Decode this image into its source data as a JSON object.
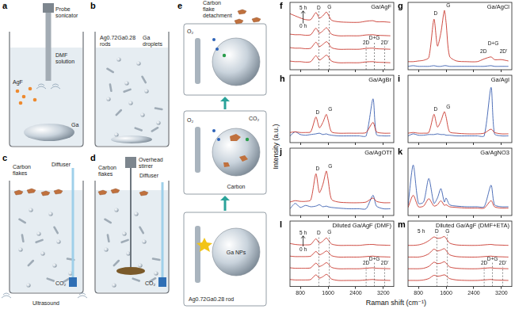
{
  "diagram": {
    "panels": [
      {
        "letter": "a",
        "labels": [
          "Probe sonicator",
          "DMF solution",
          "AgF",
          "Ga"
        ]
      },
      {
        "letter": "b",
        "labels": [
          "Ag0.72Ga0.28 rods",
          "Ga droplets"
        ]
      },
      {
        "letter": "c",
        "labels": [
          "Carbon flakes",
          "Diffuser",
          "CO₂",
          "Ultrasound"
        ]
      },
      {
        "letter": "d",
        "labels": [
          "Overhead stirrer",
          "Carbon flakes",
          "Diffuser",
          "CO₂"
        ]
      },
      {
        "letter": "e",
        "labels": [
          "Carbon flake detachment",
          "O₂",
          "O₂",
          "CO₂",
          "Carbon",
          "Ga NPs",
          "Ag0.72Ga0.28 rod"
        ]
      }
    ]
  },
  "spectra": {
    "x_label": "Raman shift (cm⁻¹)",
    "y_label": "Intensity (a.u.)"
  },
  "chart_data": [
    {
      "panel": "f",
      "type": "line",
      "title": "Ga/AgF",
      "x": [
        500,
        650,
        800,
        950,
        1100,
        1250,
        1350,
        1450,
        1550,
        1600,
        1700,
        1900,
        2200,
        2500,
        2700,
        2900,
        3000,
        3200,
        3400
      ],
      "series": [
        {
          "color": "#c8372d",
          "values": [
            1.6,
            1.5,
            1.5,
            1.4,
            1.5,
            2.6,
            1.8,
            2.2,
            2.7,
            2.5,
            1.6,
            1.3,
            1.3,
            1.3,
            1.45,
            1.5,
            1.4,
            1.35,
            1.3
          ]
        },
        {
          "color": "#c8372d",
          "values": [
            4.1,
            4.0,
            4.0,
            3.9,
            4.0,
            5.1,
            4.3,
            4.7,
            5.2,
            5.0,
            4.1,
            3.8,
            3.8,
            3.8,
            3.95,
            4.0,
            3.9,
            3.85,
            3.8
          ]
        },
        {
          "color": "#c8372d",
          "values": [
            6.6,
            6.5,
            6.5,
            6.4,
            6.5,
            7.7,
            6.8,
            7.2,
            7.8,
            7.5,
            6.6,
            6.3,
            6.3,
            6.3,
            6.45,
            6.5,
            6.4,
            6.35,
            6.3
          ]
        },
        {
          "color": "#c8372d",
          "values": [
            10.4,
            10.0,
            9.6,
            9.3,
            9.3,
            10.6,
            9.6,
            10.0,
            10.7,
            10.3,
            9.2,
            8.9,
            8.8,
            8.8,
            9.0,
            9.1,
            8.9,
            8.9,
            8.8
          ]
        }
      ],
      "xlim": [
        500,
        3500
      ],
      "xticks": [
        800,
        1600,
        2400,
        3200
      ],
      "ylim": [
        0,
        12.5
      ],
      "tick_labels": false,
      "annotations": [
        {
          "text": "D",
          "x": 1330,
          "y": 11.5,
          "line_style": "dashed"
        },
        {
          "text": "G",
          "x": 1640,
          "y": 11.6,
          "line_style": "dashed"
        },
        {
          "text": "0 h",
          "x": 880,
          "y": 8.0,
          "marker": "arrow"
        },
        {
          "text": "5 h",
          "x": 880,
          "y": 11.5
        },
        {
          "text": "2D",
          "x": 2700,
          "y": 4.9,
          "line_style": "dashed"
        },
        {
          "text": "D+G",
          "x": 2940,
          "y": 5.9,
          "line_style": "dashed"
        },
        {
          "text": "2D'",
          "x": 3240,
          "y": 4.9,
          "line_style": "dashed"
        }
      ]
    },
    {
      "panel": "g",
      "type": "line",
      "title": "Ga/AgCl",
      "x": [
        500,
        650,
        800,
        950,
        1100,
        1250,
        1350,
        1450,
        1550,
        1600,
        1700,
        1900,
        2200,
        2500,
        2700,
        2900,
        3000,
        3200,
        3400
      ],
      "series": [
        {
          "color": "#c8372d",
          "values": [
            1.2,
            1.2,
            1.3,
            1.4,
            1.8,
            7.5,
            3.5,
            5.5,
            8.8,
            7.0,
            2.0,
            1.3,
            1.2,
            1.2,
            1.6,
            1.9,
            1.5,
            1.5,
            1.3
          ]
        },
        {
          "color": "#3a5fb0",
          "values": [
            0.5,
            0.6,
            0.5,
            0.5,
            0.5,
            0.6,
            0.5,
            0.5,
            0.6,
            0.6,
            0.5,
            0.5,
            0.5,
            0.5,
            0.5,
            0.6,
            0.5,
            0.5,
            0.5
          ]
        }
      ],
      "xlim": [
        500,
        3500
      ],
      "xticks": [
        800,
        1600,
        2400,
        3200
      ],
      "ylim": [
        0,
        10
      ],
      "tick_labels": false,
      "annotations": [
        {
          "text": "D",
          "x": 1300,
          "y": 8.3
        },
        {
          "text": "G",
          "x": 1660,
          "y": 9.5
        },
        {
          "text": "2D",
          "x": 2680,
          "y": 2.7
        },
        {
          "text": "D+G",
          "x": 2960,
          "y": 3.8
        },
        {
          "text": "2D'",
          "x": 3260,
          "y": 2.7
        }
      ]
    },
    {
      "panel": "h",
      "type": "line",
      "title": "Ga/AgBr",
      "x": [
        500,
        650,
        800,
        950,
        1100,
        1250,
        1350,
        1450,
        1550,
        1600,
        1700,
        1900,
        2200,
        2500,
        2700,
        2900,
        3000,
        3200,
        3400
      ],
      "series": [
        {
          "color": "#c8372d",
          "values": [
            1.5,
            1.6,
            1.5,
            1.5,
            1.6,
            3.8,
            2.2,
            3.0,
            4.2,
            3.4,
            1.6,
            1.4,
            1.4,
            1.4,
            1.5,
            3.0,
            1.6,
            1.4,
            1.4
          ]
        },
        {
          "color": "#3a5fb0",
          "values": [
            1.0,
            1.6,
            1.2,
            1.1,
            1.2,
            1.3,
            1.4,
            1.2,
            1.3,
            1.2,
            1.1,
            1.0,
            1.0,
            1.0,
            1.0,
            6.5,
            1.2,
            1.0,
            1.0
          ]
        }
      ],
      "xlim": [
        500,
        3500
      ],
      "xticks": [
        800,
        1600,
        2400,
        3200
      ],
      "ylim": [
        0,
        10
      ],
      "tick_labels": false,
      "annotations": [
        {
          "text": "D",
          "x": 1300,
          "y": 4.5
        },
        {
          "text": "G",
          "x": 1660,
          "y": 4.9
        }
      ]
    },
    {
      "panel": "i",
      "type": "line",
      "title": "Ga/AgI",
      "x": [
        500,
        650,
        800,
        950,
        1100,
        1250,
        1350,
        1450,
        1550,
        1600,
        1700,
        1900,
        2200,
        2500,
        2700,
        2900,
        3000,
        3200,
        3400
      ],
      "series": [
        {
          "color": "#c8372d",
          "values": [
            1.4,
            1.5,
            1.4,
            1.4,
            1.5,
            4.2,
            2.3,
            3.2,
            4.6,
            3.8,
            1.6,
            1.4,
            1.3,
            1.3,
            1.4,
            2.0,
            1.5,
            1.3,
            1.3
          ]
        },
        {
          "color": "#3a5fb0",
          "values": [
            1.0,
            1.3,
            1.1,
            1.1,
            1.2,
            1.2,
            1.3,
            1.2,
            1.2,
            1.1,
            1.1,
            1.0,
            1.0,
            1.0,
            1.0,
            8.2,
            1.3,
            1.0,
            1.0
          ]
        }
      ],
      "xlim": [
        500,
        3500
      ],
      "xticks": [
        800,
        1600,
        2400,
        3200
      ],
      "ylim": [
        0,
        10
      ],
      "tick_labels": false,
      "annotations": [
        {
          "text": "D",
          "x": 1300,
          "y": 4.9
        },
        {
          "text": "G",
          "x": 1660,
          "y": 5.3
        }
      ]
    },
    {
      "panel": "j",
      "type": "line",
      "title": "Ga/AgOTf",
      "x": [
        500,
        650,
        800,
        950,
        1100,
        1250,
        1350,
        1450,
        1550,
        1600,
        1700,
        1900,
        2200,
        2500,
        2700,
        2900,
        3000,
        3200,
        3400
      ],
      "series": [
        {
          "color": "#c8372d",
          "values": [
            2.0,
            2.2,
            2.1,
            2.1,
            2.3,
            6.2,
            3.4,
            4.6,
            6.6,
            5.4,
            2.4,
            2.0,
            1.9,
            1.9,
            2.0,
            2.6,
            2.1,
            1.9,
            1.9
          ]
        },
        {
          "color": "#3a5fb0",
          "values": [
            1.0,
            1.8,
            1.2,
            1.5,
            1.3,
            1.4,
            1.6,
            1.3,
            1.4,
            1.3,
            1.2,
            1.1,
            1.0,
            1.0,
            1.0,
            3.0,
            1.4,
            1.0,
            1.0
          ]
        }
      ],
      "xlim": [
        500,
        3500
      ],
      "xticks": [
        800,
        1600,
        2400,
        3200
      ],
      "ylim": [
        0,
        10
      ],
      "tick_labels": false,
      "annotations": [
        {
          "text": "D",
          "x": 1300,
          "y": 6.9
        },
        {
          "text": "G",
          "x": 1660,
          "y": 7.3
        }
      ]
    },
    {
      "panel": "k",
      "type": "line",
      "title": "Ga/AgNO3",
      "x": [
        500,
        650,
        800,
        950,
        1100,
        1250,
        1350,
        1450,
        1550,
        1600,
        1700,
        1900,
        2200,
        2500,
        2700,
        2900,
        3000,
        3200,
        3400
      ],
      "series": [
        {
          "color": "#c8372d",
          "values": [
            1.2,
            3.0,
            1.3,
            1.4,
            2.5,
            1.4,
            1.6,
            2.2,
            1.5,
            1.6,
            1.3,
            1.2,
            1.1,
            1.1,
            1.1,
            2.2,
            1.3,
            1.1,
            1.1
          ]
        },
        {
          "color": "#3a5fb0",
          "values": [
            1.5,
            7.5,
            1.8,
            2.0,
            5.5,
            1.8,
            2.6,
            4.0,
            2.0,
            2.6,
            1.6,
            1.4,
            1.3,
            1.3,
            1.3,
            4.5,
            1.6,
            1.3,
            1.3
          ]
        }
      ],
      "xlim": [
        500,
        3500
      ],
      "xticks": [
        800,
        1600,
        2400,
        3200
      ],
      "ylim": [
        0,
        10
      ],
      "tick_labels": false,
      "annotations": []
    },
    {
      "panel": "l",
      "type": "line",
      "title": "Diluted Ga/AgF (DMF)",
      "x": [
        500,
        650,
        800,
        950,
        1100,
        1250,
        1350,
        1450,
        1550,
        1600,
        1700,
        1900,
        2200,
        2500,
        2700,
        2900,
        3000,
        3200,
        3400
      ],
      "series": [
        {
          "color": "#c8372d",
          "values": [
            1.5,
            1.4,
            1.4,
            1.4,
            1.5,
            2.5,
            1.8,
            2.1,
            2.6,
            2.4,
            1.6,
            1.3,
            1.3,
            1.3,
            1.4,
            1.5,
            1.4,
            1.35,
            1.3
          ]
        },
        {
          "color": "#c8372d",
          "values": [
            4.0,
            3.9,
            3.9,
            3.9,
            4.0,
            5.0,
            4.3,
            4.6,
            5.1,
            4.9,
            4.1,
            3.8,
            3.8,
            3.8,
            3.9,
            4.0,
            3.9,
            3.85,
            3.8
          ]
        },
        {
          "color": "#c8372d",
          "values": [
            6.5,
            6.4,
            6.4,
            6.4,
            6.5,
            7.5,
            6.8,
            7.1,
            7.6,
            7.4,
            6.6,
            6.3,
            6.3,
            6.3,
            6.4,
            6.5,
            6.4,
            6.35,
            6.3
          ]
        },
        {
          "color": "#c8372d",
          "values": [
            9.2,
            9.0,
            8.9,
            8.9,
            9.0,
            10.2,
            9.3,
            9.7,
            10.4,
            10.0,
            9.1,
            8.8,
            8.8,
            8.8,
            8.95,
            9.0,
            8.9,
            8.85,
            8.8
          ]
        }
      ],
      "xlim": [
        500,
        3500
      ],
      "xticks": [
        800,
        1600,
        2400,
        3200
      ],
      "ylim": [
        0,
        14
      ],
      "tick_labels": "x",
      "annotations": [
        {
          "text": "D",
          "x": 1330,
          "y": 11.5,
          "line_style": "dashed"
        },
        {
          "text": "G",
          "x": 1640,
          "y": 11.6,
          "line_style": "dashed"
        },
        {
          "text": "0 h",
          "x": 880,
          "y": 7.9,
          "marker": "arrow"
        },
        {
          "text": "5 h",
          "x": 880,
          "y": 11.5
        },
        {
          "text": "2D",
          "x": 2700,
          "y": 4.9,
          "line_style": "dashed"
        },
        {
          "text": "D+G",
          "x": 2940,
          "y": 5.9,
          "line_style": "dashed"
        },
        {
          "text": "2D'",
          "x": 3240,
          "y": 4.9,
          "line_style": "dashed"
        }
      ]
    },
    {
      "panel": "m",
      "type": "line",
      "title": "Diluted Ga/AgF (DMF+ETA)",
      "x": [
        500,
        650,
        800,
        950,
        1100,
        1250,
        1350,
        1450,
        1550,
        1600,
        1700,
        1900,
        2200,
        2500,
        2700,
        2900,
        3000,
        3200,
        3400
      ],
      "series": [
        {
          "color": "#c8372d",
          "values": [
            1.3,
            1.3,
            1.3,
            1.4,
            1.7,
            2.4,
            2.2,
            2.3,
            2.5,
            2.3,
            1.7,
            1.4,
            1.3,
            1.3,
            1.4,
            1.5,
            1.4,
            1.35,
            1.3
          ]
        },
        {
          "color": "#c8372d",
          "values": [
            3.8,
            3.8,
            3.8,
            3.9,
            4.3,
            5.2,
            4.9,
            5.0,
            5.3,
            5.0,
            4.2,
            3.9,
            3.8,
            3.8,
            3.9,
            4.0,
            3.9,
            3.85,
            3.8
          ]
        },
        {
          "color": "#c8372d",
          "values": [
            6.3,
            6.3,
            6.3,
            6.5,
            7.0,
            8.0,
            7.6,
            7.8,
            8.1,
            7.7,
            6.8,
            6.4,
            6.3,
            6.3,
            6.4,
            6.5,
            6.4,
            6.35,
            6.3
          ]
        },
        {
          "color": "#c8372d",
          "values": [
            8.8,
            8.8,
            8.9,
            9.2,
            9.8,
            10.6,
            10.3,
            10.4,
            10.7,
            10.3,
            9.3,
            8.9,
            8.8,
            8.8,
            8.9,
            9.0,
            8.9,
            8.85,
            8.8
          ]
        }
      ],
      "xlim": [
        500,
        3500
      ],
      "xticks": [
        800,
        1600,
        2400,
        3200
      ],
      "ylim": [
        0,
        14
      ],
      "tick_labels": "x",
      "annotations": [
        {
          "text": "D",
          "x": 1330,
          "y": 11.7,
          "line_style": "dashed"
        },
        {
          "text": "G",
          "x": 1640,
          "y": 11.8,
          "line_style": "dashed"
        },
        {
          "text": "5 h",
          "x": 880,
          "y": 11.7
        },
        {
          "text": "2D",
          "x": 2700,
          "y": 4.9,
          "line_style": "dashed"
        },
        {
          "text": "D+G",
          "x": 2940,
          "y": 5.9,
          "line_style": "dashed"
        },
        {
          "text": "2D'",
          "x": 3240,
          "y": 4.9,
          "line_style": "dashed"
        }
      ]
    }
  ]
}
